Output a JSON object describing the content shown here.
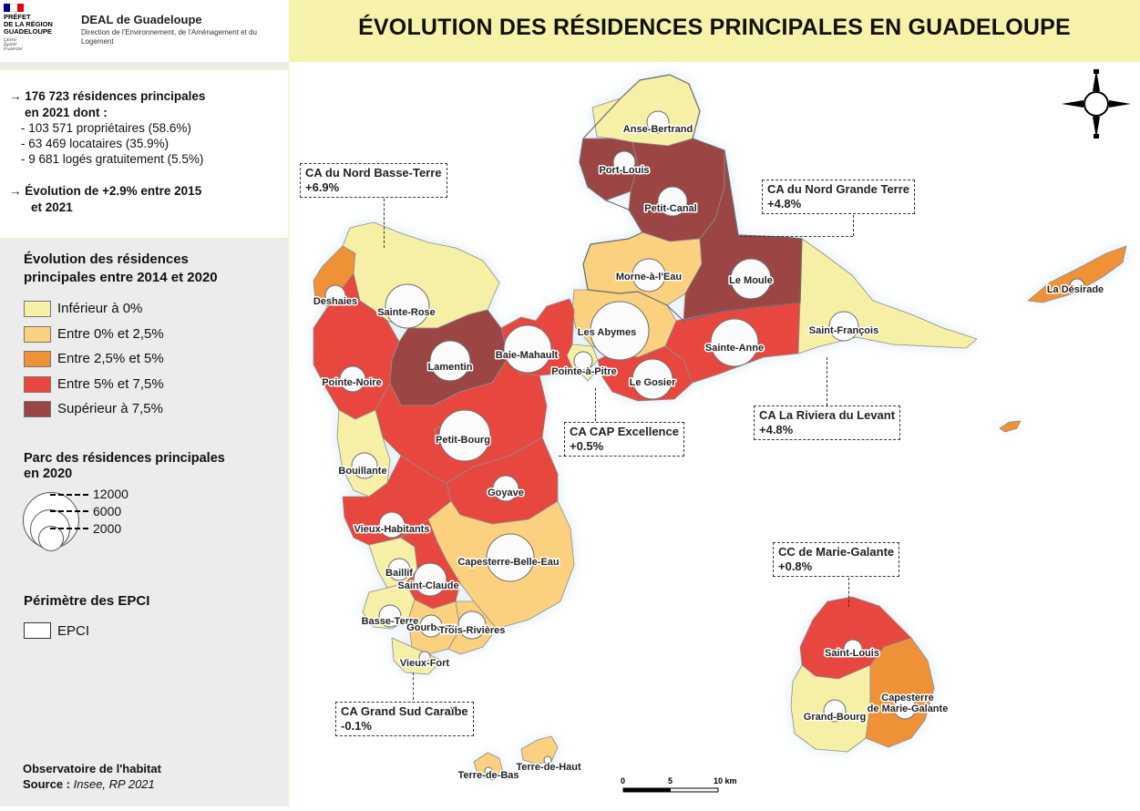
{
  "header": {
    "logo_lines": [
      "PRÉFET",
      "DE LA RÉGION",
      "GUADELOUPE"
    ],
    "logo_motto": [
      "Liberté",
      "Égalité",
      "Fraternité"
    ],
    "org_name": "DEAL de Guadeloupe",
    "org_subtitle": "Direction de l'Environnement, de l'Aménagement et du Logement",
    "title": "ÉVOLUTION DES RÉSIDENCES PRINCIPALES EN GUADELOUPE"
  },
  "stats": {
    "line1": "→ 176 723 résidences principales",
    "line2": "en 2021 dont :",
    "items": [
      "- 103 571 propriétaires (58.6%)",
      "- 63 469 locataires (35.9%)",
      "- 9 681 logés gratuitement (5.5%)"
    ],
    "evolution1": "→ Évolution de +2.9% entre 2015",
    "evolution2": "et 2021"
  },
  "legend": {
    "evolution_title_1": "Évolution des résidences",
    "evolution_title_2": "principales entre 2014 et 2020",
    "classes": [
      {
        "label": "Inférieur à  0%",
        "color": "#f6f0a6"
      },
      {
        "label": "Entre 0% et 2,5%",
        "color": "#fbd17f"
      },
      {
        "label": "Entre 2,5% et 5%",
        "color": "#ef9137"
      },
      {
        "label": "Entre 5% et 7,5%",
        "color": "#e8473f"
      },
      {
        "label": "Supérieur à 7,5%",
        "color": "#9c4545"
      }
    ],
    "parc_title_1": "Parc des résidences principales",
    "parc_title_2": "en 2020",
    "sizes": [
      "12000",
      "6000",
      "2000"
    ],
    "epci_title": "Périmètre des EPCI",
    "epci_label": "EPCI"
  },
  "footer": {
    "source_line1": "Observatoire de l'habitat",
    "source_prefix": "Source : ",
    "source_value": "Insee, RP 2021"
  },
  "epci": [
    {
      "name": "CA du Nord Basse-Terre",
      "value": "+6.9%"
    },
    {
      "name": "CA du Nord Grande Terre",
      "value": "+4.8%"
    },
    {
      "name": "CA La Riviera du Levant",
      "value": "+4.8%"
    },
    {
      "name": "CA CAP Excellence",
      "value": "+0.5%"
    },
    {
      "name": "CC de Marie-Galante",
      "value": "+0.8%"
    },
    {
      "name": "CA Grand Sud Caraïbe",
      "value": "-0.1%"
    }
  ],
  "communes": [
    {
      "name": "Anse-Bertrand",
      "class": 0
    },
    {
      "name": "Port-Louis",
      "class": 4
    },
    {
      "name": "Petit-Canal",
      "class": 4
    },
    {
      "name": "Morne-à-l'Eau",
      "class": 1
    },
    {
      "name": "Le Moule",
      "class": 4
    },
    {
      "name": "Les Abymes",
      "class": 1
    },
    {
      "name": "Pointe-à-Pitre",
      "class": 0
    },
    {
      "name": "Le Gosier",
      "class": 3
    },
    {
      "name": "Sainte-Anne",
      "class": 3
    },
    {
      "name": "Saint-François",
      "class": 0
    },
    {
      "name": "La Désirade",
      "class": 2
    },
    {
      "name": "Deshaies",
      "class": 2
    },
    {
      "name": "Sainte-Rose",
      "class": 0
    },
    {
      "name": "Lamentin",
      "class": 4
    },
    {
      "name": "Baie-Mahault",
      "class": 3
    },
    {
      "name": "Pointe-Noire",
      "class": 3
    },
    {
      "name": "Petit-Bourg",
      "class": 3
    },
    {
      "name": "Goyave",
      "class": 3
    },
    {
      "name": "Bouillante",
      "class": 0
    },
    {
      "name": "Vieux-Habitants",
      "class": 3
    },
    {
      "name": "Capesterre-Belle-Eau",
      "class": 1
    },
    {
      "name": "Baillif",
      "class": 0
    },
    {
      "name": "Saint-Claude",
      "class": 3
    },
    {
      "name": "Basse-Terre",
      "class": 0
    },
    {
      "name": "Gourbeyre",
      "class": 1
    },
    {
      "name": "Trois-Rivières",
      "class": 1
    },
    {
      "name": "Vieux-Fort",
      "class": 0
    },
    {
      "name": "Saint-Louis",
      "class": 3
    },
    {
      "name": "Grand-Bourg",
      "class": 0
    },
    {
      "name": "Capesterre de Marie-Galante",
      "class": 2
    },
    {
      "name": "Terre-de-Haut",
      "class": 1
    },
    {
      "name": "Terre-de-Bas",
      "class": 1
    }
  ],
  "scale": {
    "ticks": [
      "0",
      "5",
      "10 km"
    ]
  },
  "compass": "compass-rose-icon"
}
